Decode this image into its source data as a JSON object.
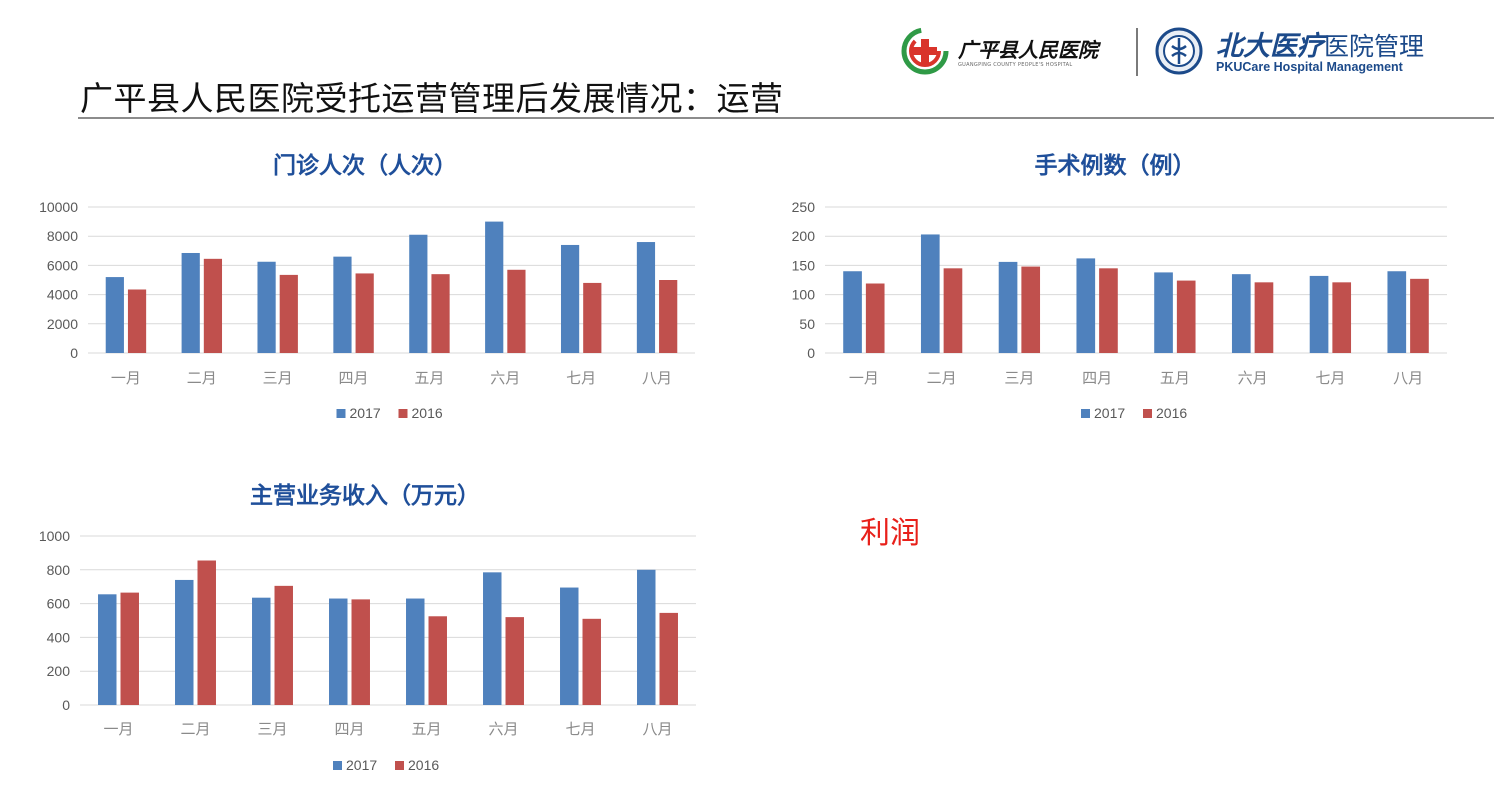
{
  "slide": {
    "title": "广平县人民医院受托运营管理后发展情况：运营",
    "note": "利润"
  },
  "logos": {
    "hospital_name": "广平县人民医院",
    "hospital_subtitle": "GUANGPING COUNTY PEOPLE'S HOSPITAL",
    "brand_cn_bold": "北大医疗",
    "brand_cn_regular": "医院管理",
    "brand_en": "PKUCare Hospital Management"
  },
  "colors": {
    "series_2017": "#4f81bd",
    "series_2016": "#c0504d",
    "grid": "#d9d9d9",
    "axis_text": "#595959",
    "chart_title": "#1f4f9a"
  },
  "chart_data": [
    {
      "type": "bar",
      "title": "门诊人次（人次）",
      "categories": [
        "一月",
        "二月",
        "三月",
        "四月",
        "五月",
        "六月",
        "七月",
        "八月"
      ],
      "series": [
        {
          "name": "2017",
          "values": [
            5200,
            6850,
            6250,
            6600,
            8100,
            9000,
            7400,
            7600
          ]
        },
        {
          "name": "2016",
          "values": [
            4350,
            6450,
            5350,
            5450,
            5400,
            5700,
            4800,
            5000
          ]
        }
      ],
      "ylim": [
        0,
        10000
      ],
      "yticks": [
        "0",
        "2000",
        "4000",
        "6000",
        "8000",
        "10000"
      ],
      "grid": true,
      "legend": "bottom"
    },
    {
      "type": "bar",
      "title": "手术例数（例）",
      "categories": [
        "一月",
        "二月",
        "三月",
        "四月",
        "五月",
        "六月",
        "七月",
        "八月"
      ],
      "series": [
        {
          "name": "2017",
          "values": [
            140,
            203,
            156,
            162,
            138,
            135,
            132,
            140
          ]
        },
        {
          "name": "2016",
          "values": [
            119,
            145,
            148,
            145,
            124,
            121,
            121,
            127
          ]
        }
      ],
      "ylim": [
        0,
        250
      ],
      "yticks": [
        "0",
        "50",
        "100",
        "150",
        "200",
        "250"
      ],
      "grid": true,
      "legend": "bottom"
    },
    {
      "type": "bar",
      "title": "主营业务收入（万元）",
      "categories": [
        "一月",
        "二月",
        "三月",
        "四月",
        "五月",
        "六月",
        "七月",
        "八月"
      ],
      "series": [
        {
          "name": "2017",
          "values": [
            655,
            740,
            635,
            630,
            630,
            785,
            695,
            800
          ]
        },
        {
          "name": "2016",
          "values": [
            665,
            855,
            705,
            625,
            525,
            520,
            510,
            545
          ]
        }
      ],
      "ylim": [
        0,
        1000
      ],
      "yticks": [
        "0",
        "200",
        "400",
        "600",
        "800",
        "1000"
      ],
      "grid": true,
      "legend": "bottom"
    }
  ]
}
